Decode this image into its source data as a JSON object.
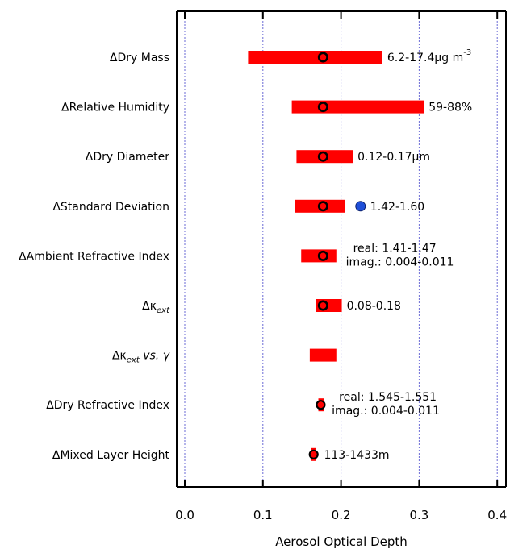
{
  "chart_data": {
    "type": "bar",
    "orientation": "horizontal-range",
    "xlabel": "Aerosol Optical Depth",
    "xlim": [
      0.0,
      0.4
    ],
    "xticks": [
      "0.0",
      "0.1",
      "0.2",
      "0.3",
      "0.4"
    ],
    "grid": "vertical dotted",
    "categories": [
      {
        "main": "ΔDry Mass",
        "sub": "",
        "tail": ""
      },
      {
        "main": "ΔRelative Humidity",
        "sub": "",
        "tail": ""
      },
      {
        "main": "ΔDry Diameter",
        "sub": "",
        "tail": ""
      },
      {
        "main": "ΔStandard Deviation",
        "sub": "",
        "tail": ""
      },
      {
        "main": "ΔAmbient Refractive Index",
        "sub": "",
        "tail": ""
      },
      {
        "main": "Δκ",
        "sub": "ext",
        "tail": ""
      },
      {
        "main": "Δκ",
        "sub": "ext",
        "tail": " vs. γ"
      },
      {
        "main": "ΔDry Refractive Index",
        "sub": "",
        "tail": ""
      },
      {
        "main": "ΔMixed Layer Height",
        "sub": "",
        "tail": ""
      }
    ],
    "ranges": [
      [
        0.081,
        0.253
      ],
      [
        0.137,
        0.306
      ],
      [
        0.143,
        0.215
      ],
      [
        0.141,
        0.205
      ],
      [
        0.149,
        0.194
      ],
      [
        0.168,
        0.201
      ],
      [
        0.16,
        0.194
      ],
      [
        0.171,
        0.178
      ],
      [
        0.162,
        0.168
      ]
    ],
    "markers": [
      0.177,
      0.177,
      0.177,
      0.177,
      0.177,
      0.177,
      null,
      0.174,
      0.165
    ],
    "marker_style": [
      "open",
      "open",
      "open",
      "open",
      "open",
      "open",
      null,
      "filled",
      "filled"
    ],
    "annotations": [
      {
        "x": 0.253,
        "lines": [
          {
            "text": "6.2-17.4μg m",
            "sup": "-3"
          }
        ],
        "dot": null
      },
      {
        "x": 0.306,
        "lines": [
          {
            "text": "59-88%",
            "sup": ""
          }
        ],
        "dot": null
      },
      {
        "x": 0.215,
        "lines": [
          {
            "text": "0.12-0.17μm",
            "sup": ""
          }
        ],
        "dot": null
      },
      {
        "x": 0.213,
        "lines": [
          {
            "text": "1.42-1.60",
            "sup": ""
          }
        ],
        "dot": 0.225
      },
      {
        "x": 0.2,
        "lines": [
          {
            "text": "real: 1.41-1.47",
            "sup": ""
          },
          {
            "text": "imag.: 0.004-0.011",
            "sup": ""
          }
        ],
        "dot": null
      },
      {
        "x": 0.201,
        "lines": [
          {
            "text": "0.08-0.18",
            "sup": ""
          }
        ],
        "dot": null
      },
      null,
      {
        "x": 0.182,
        "lines": [
          {
            "text": "real: 1.545-1.551",
            "sup": ""
          },
          {
            "text": "imag.: 0.004-0.011",
            "sup": ""
          }
        ],
        "dot": null
      },
      {
        "x": 0.172,
        "lines": [
          {
            "text": "113-1433m",
            "sup": ""
          }
        ],
        "dot": null
      }
    ],
    "colors": {
      "bar": "#ff0000",
      "marker_edge": "#000000",
      "dot": "#1f4fd8",
      "dot_edge": "#0a1f6a",
      "grid": "#6b6bd6"
    }
  }
}
